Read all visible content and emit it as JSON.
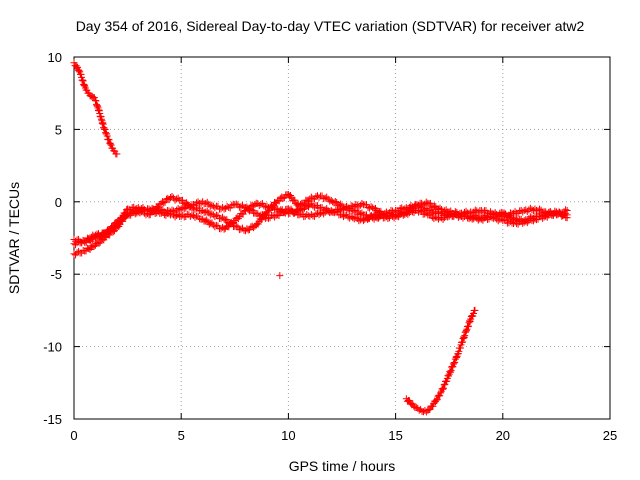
{
  "chart_data": {
    "type": "scatter",
    "title": "Day 354 of 2016, Sidereal Day-to-day VTEC variation (SDTVAR) for receiver atw2",
    "xlabel": "GPS time / hours",
    "ylabel": "SDTVAR / TECUs",
    "xlim": [
      0,
      25
    ],
    "ylim": [
      -15,
      10
    ],
    "xticks": [
      0,
      5,
      10,
      15,
      20,
      25
    ],
    "yticks": [
      -15,
      -10,
      -5,
      0,
      5,
      10
    ],
    "grid": true,
    "marker": "+",
    "color": "#ff0000",
    "series": [
      {
        "name": "descending arc 0-2h",
        "x": [
          0.0,
          0.1,
          0.2,
          0.3,
          0.4,
          0.5,
          0.6,
          0.7,
          0.8,
          0.9,
          1.0,
          1.1,
          1.2,
          1.3,
          1.4,
          1.5,
          1.6,
          1.7,
          1.8,
          1.9,
          2.0
        ],
        "y": [
          9.6,
          9.4,
          9.1,
          8.8,
          8.4,
          8.0,
          7.7,
          7.5,
          7.3,
          7.2,
          7.0,
          6.6,
          6.1,
          5.6,
          5.1,
          4.7,
          4.3,
          4.0,
          3.7,
          3.5,
          3.3
        ]
      },
      {
        "name": "near-zero band A",
        "x": [
          0.0,
          0.5,
          1.0,
          1.5,
          2.0,
          2.5,
          3.0,
          3.5,
          4.0,
          4.5,
          5.0,
          5.5,
          6.0,
          6.5,
          7.0,
          7.5,
          8.0,
          8.5,
          9.0,
          9.5,
          10.0,
          10.5,
          11.0,
          11.5,
          12.0,
          12.5,
          13.0,
          13.5,
          14.0,
          14.5,
          15.0,
          15.5,
          16.0,
          16.5,
          17.0,
          17.5,
          18.0,
          18.5,
          19.0,
          19.5,
          20.0,
          20.5,
          21.0,
          21.5,
          22.0,
          22.5,
          23.0
        ],
        "y": [
          -3.6,
          -3.4,
          -3.0,
          -2.4,
          -1.8,
          -0.8,
          -0.6,
          -0.9,
          -0.2,
          0.3,
          0.1,
          -0.4,
          -0.6,
          -0.9,
          -1.2,
          -1.7,
          -2.0,
          -1.6,
          -0.7,
          0.1,
          0.5,
          -0.3,
          0.2,
          0.4,
          0.1,
          -0.3,
          -0.6,
          -0.9,
          -1.2,
          -0.8,
          -0.6,
          -0.4,
          -0.3,
          -0.6,
          -0.8,
          -0.9,
          -1.0,
          -1.1,
          -1.2,
          -1.1,
          -1.3,
          -1.5,
          -1.4,
          -1.2,
          -1.0,
          -0.8,
          -0.9
        ]
      },
      {
        "name": "near-zero band B",
        "x": [
          0.0,
          0.5,
          1.0,
          1.5,
          2.0,
          2.5,
          3.0,
          3.5,
          4.0,
          4.5,
          5.0,
          5.5,
          6.0,
          6.5,
          7.0,
          7.5,
          8.0,
          8.5,
          9.0,
          9.5,
          10.0,
          10.5,
          11.0,
          11.5,
          12.0,
          12.5,
          13.0,
          13.5,
          14.0,
          14.5,
          15.0,
          15.5,
          16.0,
          16.5,
          17.0,
          17.5,
          18.0,
          18.5,
          19.0,
          19.5,
          20.0,
          20.5,
          21.0,
          21.5,
          22.0,
          22.5,
          23.0
        ],
        "y": [
          -2.6,
          -2.8,
          -2.5,
          -2.1,
          -1.6,
          -0.5,
          -0.4,
          -0.6,
          -0.8,
          -0.9,
          -1.0,
          -0.9,
          -1.2,
          -1.6,
          -1.9,
          -1.3,
          -0.6,
          -0.1,
          -0.3,
          -0.5,
          -0.8,
          -0.6,
          -0.2,
          -0.4,
          -0.7,
          -0.5,
          -0.3,
          -0.2,
          -0.5,
          -0.9,
          -0.9,
          -0.7,
          -0.2,
          -0.1,
          -0.5,
          -0.7,
          -0.8,
          -0.7,
          -0.6,
          -0.8,
          -1.0,
          -0.8,
          -0.6,
          -0.5,
          -0.7,
          -0.9,
          -0.6
        ]
      },
      {
        "name": "near-zero band C",
        "x": [
          0.0,
          0.5,
          1.0,
          1.5,
          2.0,
          2.5,
          3.0,
          3.5,
          4.0,
          4.5,
          5.0,
          5.5,
          6.0,
          6.5,
          7.0,
          7.5,
          8.0,
          8.5,
          9.0,
          9.5,
          10.0,
          10.5,
          11.0,
          11.5,
          12.0,
          12.5,
          13.0,
          13.5,
          14.0,
          14.5,
          15.0,
          15.5,
          16.0,
          16.5,
          17.0,
          17.5,
          18.0,
          18.5,
          19.0,
          19.5,
          20.0,
          20.5,
          21.0,
          21.5,
          22.0,
          22.5,
          23.0
        ],
        "y": [
          -2.9,
          -2.7,
          -2.3,
          -2.2,
          -1.4,
          -0.9,
          -0.7,
          -0.5,
          -0.6,
          -0.7,
          -0.5,
          -0.2,
          0.0,
          -0.3,
          -0.5,
          -0.2,
          -0.4,
          -0.8,
          -1.1,
          -0.9,
          -0.5,
          -0.9,
          -1.0,
          -0.8,
          -0.6,
          -0.9,
          -1.1,
          -1.3,
          -0.9,
          -1.1,
          -1.0,
          -0.8,
          -0.6,
          -0.9,
          -1.2,
          -1.0,
          -0.8,
          -1.0,
          -1.1,
          -0.9,
          -0.8,
          -1.2,
          -1.3,
          -1.0,
          -0.8,
          -0.7,
          -1.1
        ]
      },
      {
        "name": "isolated point",
        "x": [
          9.6
        ],
        "y": [
          -5.1
        ]
      },
      {
        "name": "U-shaped arc 15.5-18.7h",
        "x": [
          15.5,
          15.7,
          15.9,
          16.1,
          16.3,
          16.5,
          16.7,
          16.9,
          17.1,
          17.3,
          17.5,
          17.7,
          17.9,
          18.1,
          18.3,
          18.5,
          18.7
        ],
        "y": [
          -13.6,
          -13.9,
          -14.2,
          -14.4,
          -14.5,
          -14.4,
          -14.1,
          -13.7,
          -13.2,
          -12.6,
          -11.9,
          -11.2,
          -10.5,
          -9.7,
          -8.9,
          -8.1,
          -7.5
        ]
      }
    ]
  }
}
